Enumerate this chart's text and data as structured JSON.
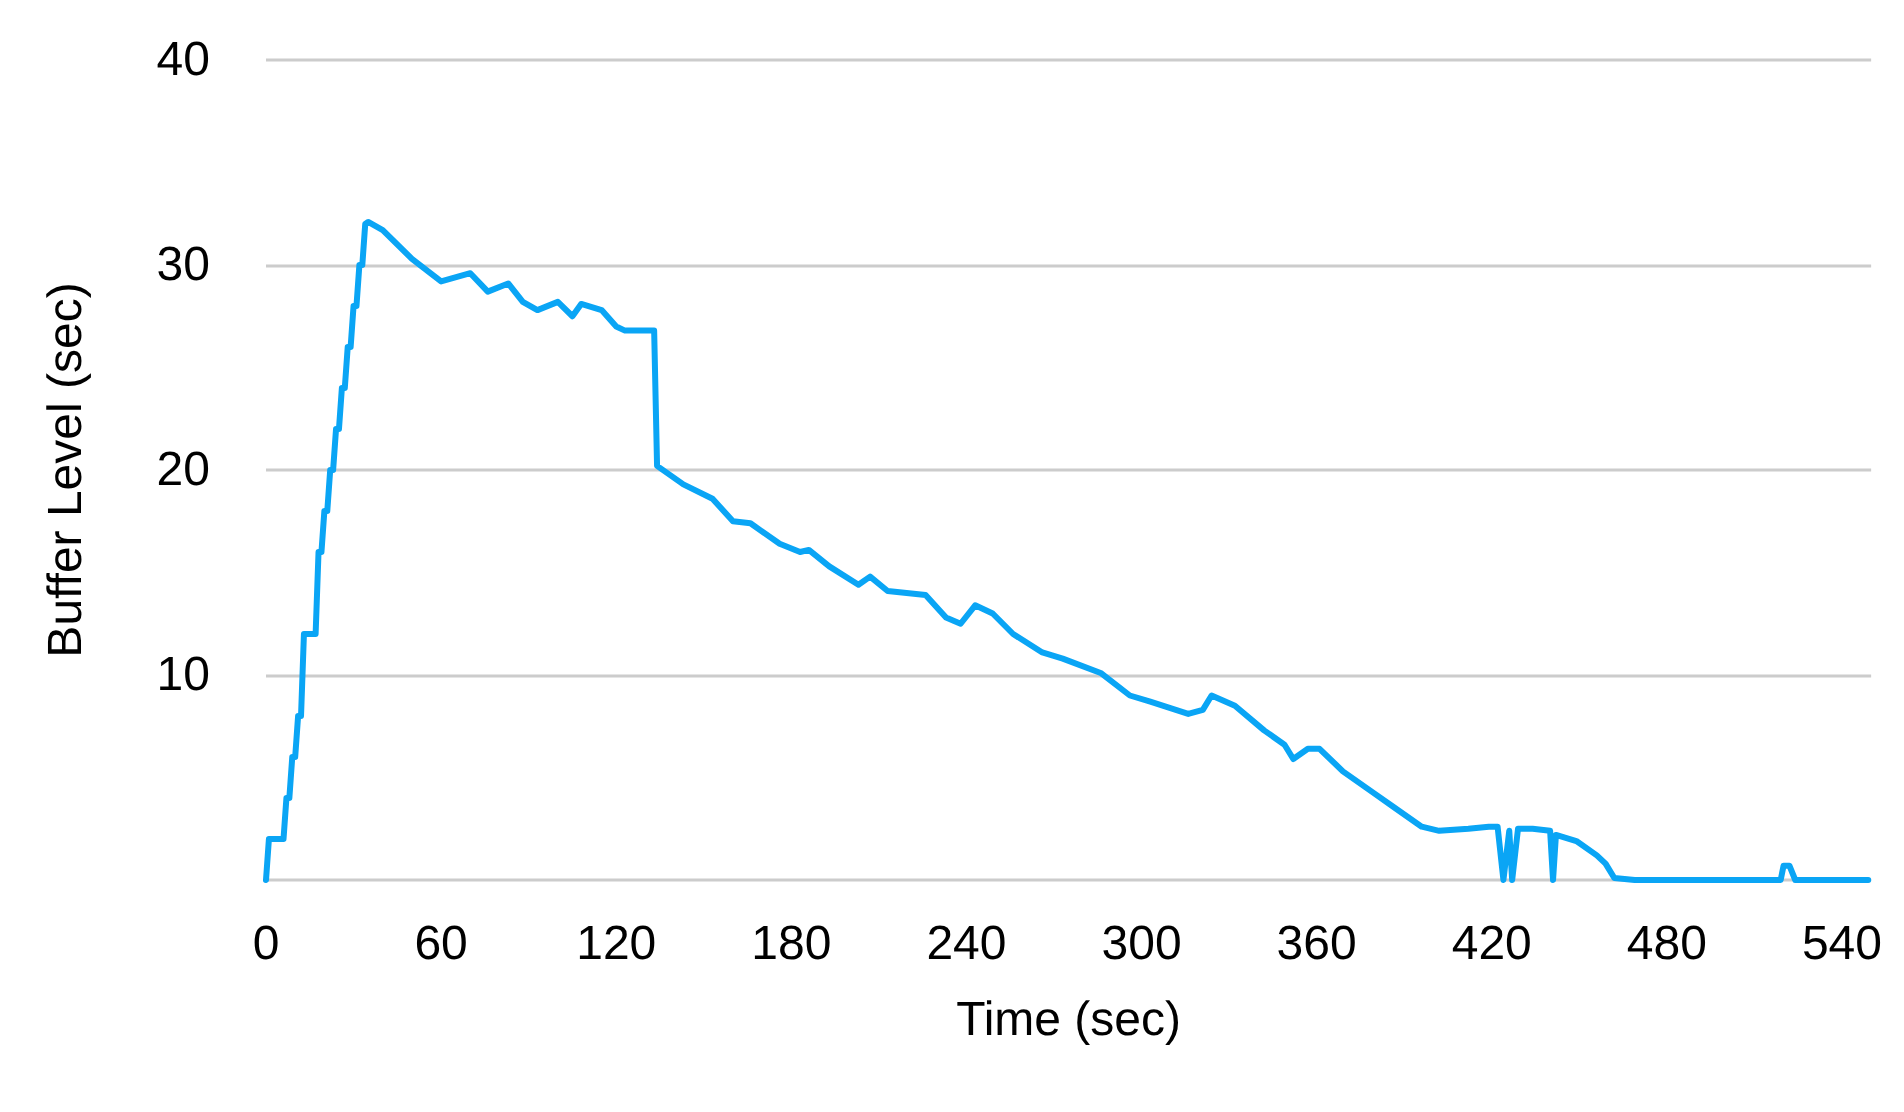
{
  "chart_data": {
    "type": "line",
    "xlabel": "Time (sec)",
    "ylabel": "Buffer Level (sec)",
    "xlim": [
      0,
      550
    ],
    "xticks": [
      0,
      60,
      120,
      180,
      240,
      300,
      360,
      420,
      480,
      540
    ],
    "ylim": [
      0,
      40
    ],
    "yticks": [
      {
        "value": 0,
        "label": null
      },
      10,
      20,
      30,
      40
    ],
    "grid": "y",
    "marker": "none",
    "line_style": "solid",
    "x": [
      0,
      1,
      6,
      7,
      8,
      9,
      10,
      11,
      12,
      13,
      14,
      17,
      18,
      19,
      20,
      21,
      22,
      23,
      24,
      25,
      26,
      27,
      28,
      29,
      30,
      31,
      32,
      33,
      34,
      35,
      40,
      50,
      60,
      70,
      76,
      83,
      88,
      93,
      100,
      105,
      108,
      115,
      120,
      123,
      133,
      134,
      143,
      153,
      160,
      166,
      176,
      183,
      186,
      193,
      203,
      207,
      213,
      226,
      233,
      238,
      243,
      249,
      256,
      266,
      273,
      286,
      296,
      303,
      316,
      321,
      324,
      332,
      342,
      349,
      352,
      357,
      361,
      369,
      379,
      386,
      396,
      402,
      412,
      419,
      422,
      424,
      426,
      427,
      429,
      434,
      440,
      441,
      442,
      449,
      456,
      459,
      462,
      469,
      519,
      520,
      522,
      524,
      549
    ],
    "series": [
      {
        "color": "#0aa5f5",
        "values": [
          0,
          2,
          2,
          4,
          4,
          6,
          6,
          8,
          8,
          12,
          12,
          12,
          16,
          16,
          18,
          18,
          20,
          20,
          22,
          22,
          24,
          24,
          26,
          26,
          28,
          28,
          30,
          30,
          32,
          32.1,
          31.7,
          30.3,
          29.2,
          29.6,
          28.7,
          29.1,
          28.2,
          27.8,
          28.2,
          27.5,
          28.1,
          27.8,
          27,
          26.8,
          26.8,
          20.2,
          19.3,
          18.6,
          17.5,
          17.4,
          16.4,
          16,
          16.1,
          15.3,
          14.4,
          14.8,
          14.1,
          13.9,
          12.8,
          12.5,
          13.4,
          13,
          12,
          11.1,
          10.8,
          10.1,
          9,
          8.7,
          8.1,
          8.3,
          9,
          8.5,
          7.3,
          6.6,
          5.9,
          6.4,
          6.4,
          5.3,
          4.3,
          3.6,
          2.6,
          2.4,
          2.5,
          2.6,
          2.6,
          0,
          2.4,
          0,
          2.5,
          2.5,
          2.4,
          0,
          2.2,
          1.9,
          1.2,
          0.8,
          0.1,
          0,
          0,
          0.7,
          0.7,
          0,
          0
        ]
      }
    ]
  }
}
